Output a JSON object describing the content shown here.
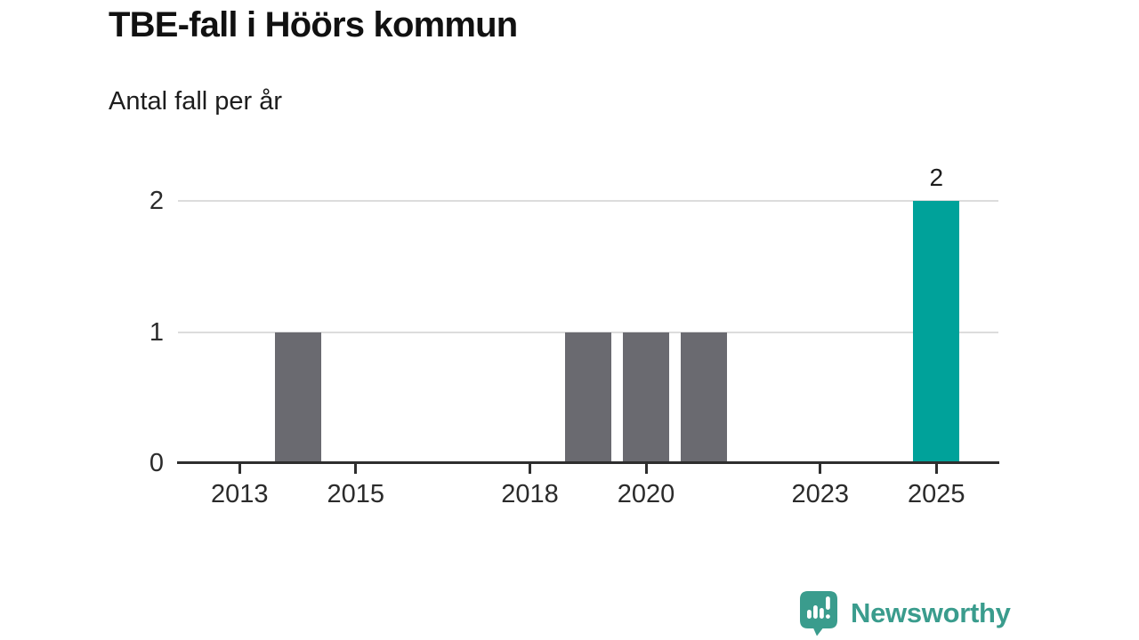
{
  "header": {
    "title": "TBE-fall i Höörs kommun",
    "subtitle": "Antal fall per år"
  },
  "chart_data": {
    "type": "bar",
    "title": "TBE-fall i Höörs kommun",
    "subtitle": "Antal fall per år",
    "categories": [
      2012,
      2013,
      2014,
      2015,
      2016,
      2017,
      2018,
      2019,
      2020,
      2021,
      2022,
      2023,
      2024,
      2025
    ],
    "values": [
      0,
      0,
      1,
      0,
      0,
      0,
      0,
      1,
      1,
      1,
      0,
      0,
      0,
      2
    ],
    "highlight_year": 2025,
    "bar_labels": [
      {
        "year": 2025,
        "text": "2"
      }
    ],
    "x_tick_years": [
      "2013",
      "2015",
      "2018",
      "2020",
      "2023",
      "2025"
    ],
    "y_ticks": [
      "0",
      "1",
      "2"
    ],
    "ylim": [
      0,
      2
    ],
    "xlabel": "",
    "ylabel": "",
    "grid": "horizontal-light",
    "legend": "none",
    "bar_color_default": "#6a6a70",
    "bar_color_highlight": "#00a29a"
  },
  "footer": {
    "brand": "Newsworthy",
    "brand_color": "#3a9c8d",
    "icon": "newsworthy-speech-bubble-bar-chart-icon"
  },
  "colors": {
    "axis_line": "#2e2e2e",
    "gridline": "#dcdcdc",
    "tick_label": "#2b2b2b",
    "title_text": "#111111"
  }
}
